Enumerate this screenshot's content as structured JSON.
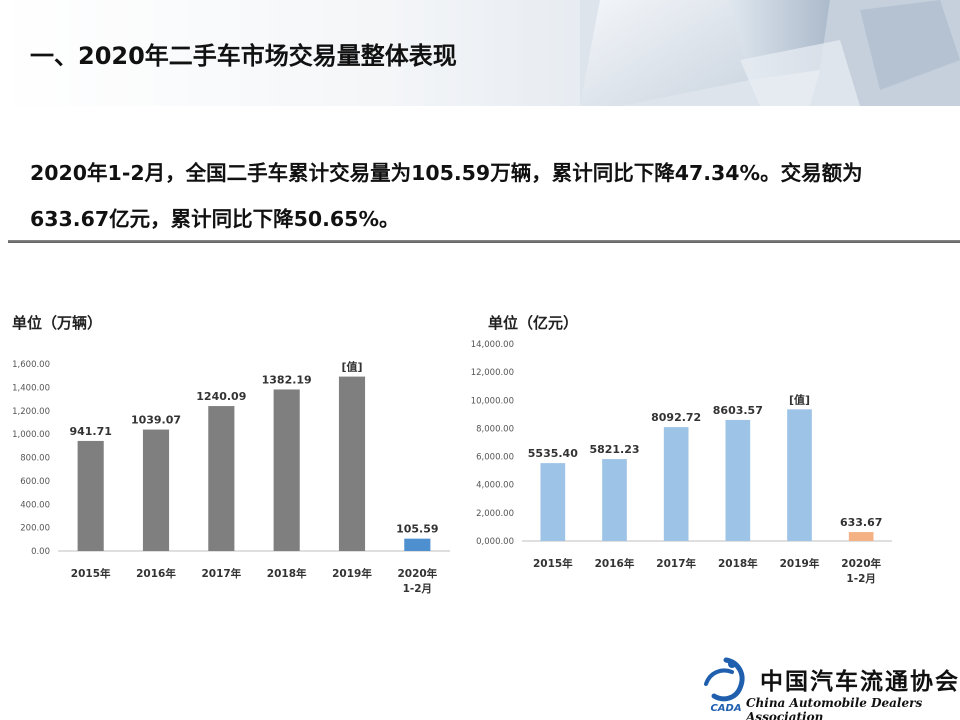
{
  "header": {
    "title": "一、2020年二手车市场交易量整体表现"
  },
  "summary": {
    "line1": "2020年1-2月，全国二手车累计交易量为105.59万辆，累计同比下降47.34%。交易额为",
    "line2": "633.67亿元，累计同比下降50.65%。"
  },
  "chart_data": [
    {
      "type": "bar",
      "unit_label": "单位（万辆）",
      "categories": [
        "2015年",
        "2016年",
        "2017年",
        "2018年",
        "2019年",
        "2020年\n1-2月"
      ],
      "values": [
        941.71,
        1039.07,
        1240.09,
        1382.19,
        1492.28,
        105.59
      ],
      "data_labels": [
        "941.71",
        "1039.07",
        "1240.09",
        "1382.19",
        "[值]",
        "105.59"
      ],
      "bar_colors": [
        "#7f7f7f",
        "#7f7f7f",
        "#7f7f7f",
        "#7f7f7f",
        "#7f7f7f",
        "#4e8fd0"
      ],
      "yticks": [
        "0.00",
        "200.00",
        "400.00",
        "600.00",
        "800.00",
        "1,000.00",
        "1,200.00",
        "1,400.00",
        "1,600.00"
      ],
      "ylim": [
        0,
        1600
      ]
    },
    {
      "type": "bar",
      "unit_label": "单位（亿元）",
      "categories": [
        "2015年",
        "2016年",
        "2017年",
        "2018年",
        "2019年",
        "2020年\n1-2月"
      ],
      "values": [
        5535.4,
        5821.23,
        8092.72,
        8603.57,
        9356.86,
        633.67
      ],
      "data_labels": [
        "5535.40",
        "5821.23",
        "8092.72",
        "8603.57",
        "[值]",
        "633.67"
      ],
      "bar_colors": [
        "#9dc3e6",
        "#9dc3e6",
        "#9dc3e6",
        "#9dc3e6",
        "#9dc3e6",
        "#f4b183"
      ],
      "yticks": [
        "0,000.00",
        "2,000.00",
        "4,000.00",
        "6,000.00",
        "8,000.00",
        "10,000.00",
        "12,000.00",
        "14,000.00"
      ],
      "ylim": [
        0,
        14000
      ]
    }
  ],
  "footer": {
    "org_cn": "中国汽车流通协会",
    "org_en": "China Automobile Dealers Association",
    "logo_text": "CADA"
  }
}
